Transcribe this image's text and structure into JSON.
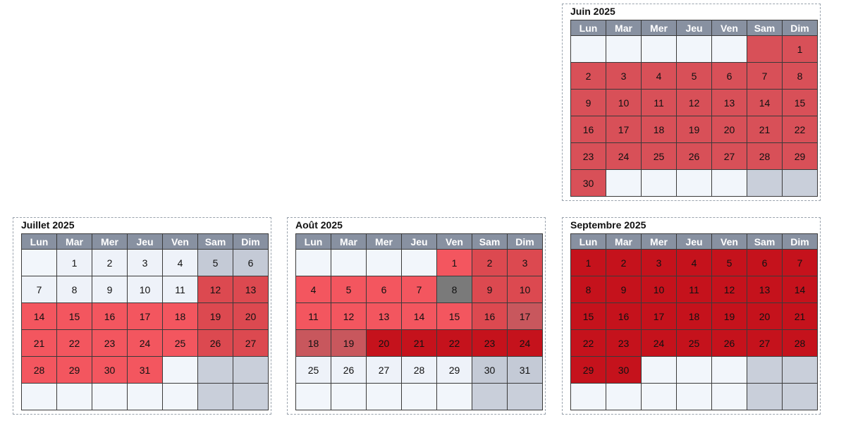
{
  "weekdays": [
    "Lun",
    "Mar",
    "Mer",
    "Jeu",
    "Ven",
    "Sam",
    "Dim"
  ],
  "calendars": [
    {
      "title": "Juin 2025",
      "weeks": [
        [
          {
            "d": "",
            "s": "empty"
          },
          {
            "d": "",
            "s": "empty"
          },
          {
            "d": "",
            "s": "empty"
          },
          {
            "d": "",
            "s": "empty"
          },
          {
            "d": "",
            "s": "empty"
          },
          {
            "d": "",
            "s": "pink"
          },
          {
            "d": "1",
            "s": "pink"
          }
        ],
        [
          {
            "d": "2",
            "s": "pink"
          },
          {
            "d": "3",
            "s": "pink"
          },
          {
            "d": "4",
            "s": "pink"
          },
          {
            "d": "5",
            "s": "pink"
          },
          {
            "d": "6",
            "s": "pink"
          },
          {
            "d": "7",
            "s": "pink"
          },
          {
            "d": "8",
            "s": "pink"
          }
        ],
        [
          {
            "d": "9",
            "s": "pink"
          },
          {
            "d": "10",
            "s": "pink"
          },
          {
            "d": "11",
            "s": "pink"
          },
          {
            "d": "12",
            "s": "pink"
          },
          {
            "d": "13",
            "s": "pink"
          },
          {
            "d": "14",
            "s": "pink"
          },
          {
            "d": "15",
            "s": "pink"
          }
        ],
        [
          {
            "d": "16",
            "s": "pink"
          },
          {
            "d": "17",
            "s": "pink"
          },
          {
            "d": "18",
            "s": "pink"
          },
          {
            "d": "19",
            "s": "pink"
          },
          {
            "d": "20",
            "s": "pink"
          },
          {
            "d": "21",
            "s": "pink"
          },
          {
            "d": "22",
            "s": "pink"
          }
        ],
        [
          {
            "d": "23",
            "s": "pink"
          },
          {
            "d": "24",
            "s": "pink"
          },
          {
            "d": "25",
            "s": "pink"
          },
          {
            "d": "26",
            "s": "pink"
          },
          {
            "d": "27",
            "s": "pink"
          },
          {
            "d": "28",
            "s": "pink"
          },
          {
            "d": "29",
            "s": "pink"
          }
        ],
        [
          {
            "d": "30",
            "s": "pink"
          },
          {
            "d": "",
            "s": "empty"
          },
          {
            "d": "",
            "s": "empty"
          },
          {
            "d": "",
            "s": "empty"
          },
          {
            "d": "",
            "s": "empty"
          },
          {
            "d": "",
            "s": "empty-we"
          },
          {
            "d": "",
            "s": "empty-we"
          }
        ]
      ]
    },
    {
      "title": "Juillet 2025",
      "weeks": [
        [
          {
            "d": "",
            "s": "empty"
          },
          {
            "d": "1",
            "s": "avail"
          },
          {
            "d": "2",
            "s": "avail"
          },
          {
            "d": "3",
            "s": "avail"
          },
          {
            "d": "4",
            "s": "avail"
          },
          {
            "d": "5",
            "s": "avail-we"
          },
          {
            "d": "6",
            "s": "avail-we"
          }
        ],
        [
          {
            "d": "7",
            "s": "avail"
          },
          {
            "d": "8",
            "s": "avail"
          },
          {
            "d": "9",
            "s": "avail"
          },
          {
            "d": "10",
            "s": "avail"
          },
          {
            "d": "11",
            "s": "avail"
          },
          {
            "d": "12",
            "s": "red-we"
          },
          {
            "d": "13",
            "s": "red-we"
          }
        ],
        [
          {
            "d": "14",
            "s": "red"
          },
          {
            "d": "15",
            "s": "red"
          },
          {
            "d": "16",
            "s": "red"
          },
          {
            "d": "17",
            "s": "red"
          },
          {
            "d": "18",
            "s": "red"
          },
          {
            "d": "19",
            "s": "red-we"
          },
          {
            "d": "20",
            "s": "red-we"
          }
        ],
        [
          {
            "d": "21",
            "s": "red"
          },
          {
            "d": "22",
            "s": "red"
          },
          {
            "d": "23",
            "s": "red"
          },
          {
            "d": "24",
            "s": "red"
          },
          {
            "d": "25",
            "s": "red"
          },
          {
            "d": "26",
            "s": "red-we"
          },
          {
            "d": "27",
            "s": "red-we"
          }
        ],
        [
          {
            "d": "28",
            "s": "red"
          },
          {
            "d": "29",
            "s": "red"
          },
          {
            "d": "30",
            "s": "red"
          },
          {
            "d": "31",
            "s": "red"
          },
          {
            "d": "",
            "s": "empty"
          },
          {
            "d": "",
            "s": "empty-we"
          },
          {
            "d": "",
            "s": "empty-we"
          }
        ],
        [
          {
            "d": "",
            "s": "empty"
          },
          {
            "d": "",
            "s": "empty"
          },
          {
            "d": "",
            "s": "empty"
          },
          {
            "d": "",
            "s": "empty"
          },
          {
            "d": "",
            "s": "empty"
          },
          {
            "d": "",
            "s": "empty-we"
          },
          {
            "d": "",
            "s": "empty-we"
          }
        ]
      ]
    },
    {
      "title": "Août 2025",
      "weeks": [
        [
          {
            "d": "",
            "s": "empty"
          },
          {
            "d": "",
            "s": "empty"
          },
          {
            "d": "",
            "s": "empty"
          },
          {
            "d": "",
            "s": "empty"
          },
          {
            "d": "1",
            "s": "red"
          },
          {
            "d": "2",
            "s": "red-we"
          },
          {
            "d": "3",
            "s": "red-we"
          }
        ],
        [
          {
            "d": "4",
            "s": "red"
          },
          {
            "d": "5",
            "s": "red"
          },
          {
            "d": "6",
            "s": "red"
          },
          {
            "d": "7",
            "s": "red"
          },
          {
            "d": "8",
            "s": "gray"
          },
          {
            "d": "9",
            "s": "red-we"
          },
          {
            "d": "10",
            "s": "red-we"
          }
        ],
        [
          {
            "d": "11",
            "s": "red"
          },
          {
            "d": "12",
            "s": "red"
          },
          {
            "d": "13",
            "s": "red"
          },
          {
            "d": "14",
            "s": "red"
          },
          {
            "d": "15",
            "s": "red"
          },
          {
            "d": "16",
            "s": "red-we"
          },
          {
            "d": "17",
            "s": "mauve"
          }
        ],
        [
          {
            "d": "18",
            "s": "mauve"
          },
          {
            "d": "19",
            "s": "mauve"
          },
          {
            "d": "20",
            "s": "dark"
          },
          {
            "d": "21",
            "s": "dark"
          },
          {
            "d": "22",
            "s": "dark"
          },
          {
            "d": "23",
            "s": "dark"
          },
          {
            "d": "24",
            "s": "dark"
          }
        ],
        [
          {
            "d": "25",
            "s": "avail"
          },
          {
            "d": "26",
            "s": "avail"
          },
          {
            "d": "27",
            "s": "avail"
          },
          {
            "d": "28",
            "s": "avail"
          },
          {
            "d": "29",
            "s": "avail"
          },
          {
            "d": "30",
            "s": "avail-we"
          },
          {
            "d": "31",
            "s": "avail-we"
          }
        ],
        [
          {
            "d": "",
            "s": "empty"
          },
          {
            "d": "",
            "s": "empty"
          },
          {
            "d": "",
            "s": "empty"
          },
          {
            "d": "",
            "s": "empty"
          },
          {
            "d": "",
            "s": "empty"
          },
          {
            "d": "",
            "s": "empty-we"
          },
          {
            "d": "",
            "s": "empty-we"
          }
        ]
      ]
    },
    {
      "title": "Septembre 2025",
      "weeks": [
        [
          {
            "d": "1",
            "s": "dark"
          },
          {
            "d": "2",
            "s": "dark"
          },
          {
            "d": "3",
            "s": "dark"
          },
          {
            "d": "4",
            "s": "dark"
          },
          {
            "d": "5",
            "s": "dark"
          },
          {
            "d": "6",
            "s": "dark"
          },
          {
            "d": "7",
            "s": "dark"
          }
        ],
        [
          {
            "d": "8",
            "s": "dark"
          },
          {
            "d": "9",
            "s": "dark"
          },
          {
            "d": "10",
            "s": "dark"
          },
          {
            "d": "11",
            "s": "dark"
          },
          {
            "d": "12",
            "s": "dark"
          },
          {
            "d": "13",
            "s": "dark"
          },
          {
            "d": "14",
            "s": "dark"
          }
        ],
        [
          {
            "d": "15",
            "s": "dark"
          },
          {
            "d": "16",
            "s": "dark"
          },
          {
            "d": "17",
            "s": "dark"
          },
          {
            "d": "18",
            "s": "dark"
          },
          {
            "d": "19",
            "s": "dark"
          },
          {
            "d": "20",
            "s": "dark"
          },
          {
            "d": "21",
            "s": "dark"
          }
        ],
        [
          {
            "d": "22",
            "s": "dark"
          },
          {
            "d": "23",
            "s": "dark"
          },
          {
            "d": "24",
            "s": "dark"
          },
          {
            "d": "25",
            "s": "dark"
          },
          {
            "d": "26",
            "s": "dark"
          },
          {
            "d": "27",
            "s": "dark"
          },
          {
            "d": "28",
            "s": "dark"
          }
        ],
        [
          {
            "d": "29",
            "s": "dark"
          },
          {
            "d": "30",
            "s": "dark"
          },
          {
            "d": "",
            "s": "empty"
          },
          {
            "d": "",
            "s": "empty"
          },
          {
            "d": "",
            "s": "empty"
          },
          {
            "d": "",
            "s": "empty-we"
          },
          {
            "d": "",
            "s": "empty-we"
          }
        ],
        [
          {
            "d": "",
            "s": "empty"
          },
          {
            "d": "",
            "s": "empty"
          },
          {
            "d": "",
            "s": "empty"
          },
          {
            "d": "",
            "s": "empty"
          },
          {
            "d": "",
            "s": "empty"
          },
          {
            "d": "",
            "s": "empty-we"
          },
          {
            "d": "",
            "s": "empty-we"
          }
        ]
      ]
    }
  ]
}
